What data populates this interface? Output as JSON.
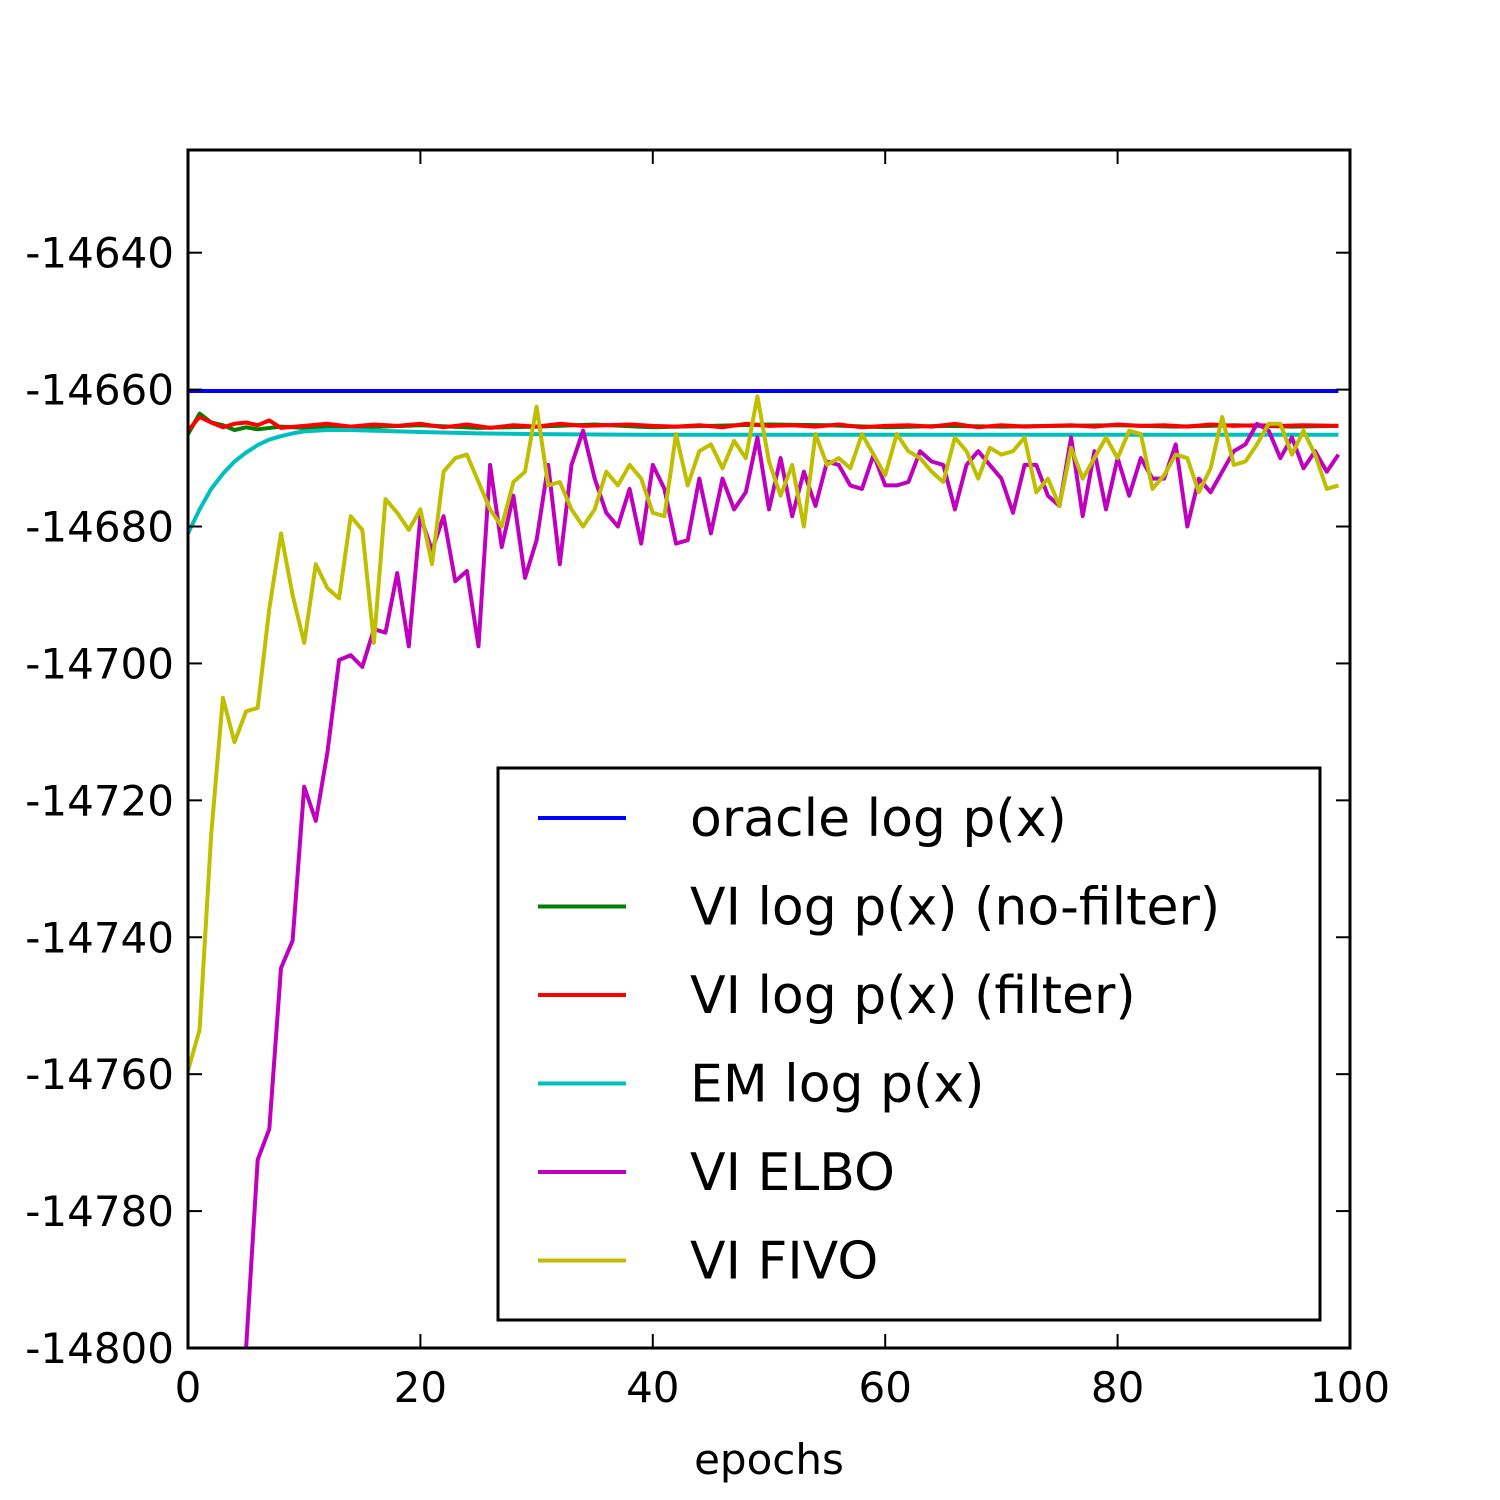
{
  "chart_data": {
    "type": "line",
    "title": "",
    "xlabel": "epochs",
    "ylabel": "",
    "xlim": [
      0,
      100
    ],
    "ylim": [
      -14800,
      -14625
    ],
    "x_ticks": [
      0,
      20,
      40,
      60,
      80,
      100
    ],
    "y_ticks": [
      -14800,
      -14780,
      -14760,
      -14740,
      -14720,
      -14700,
      -14680,
      -14660,
      -14640
    ],
    "x_tick_labels": [
      "0",
      "20",
      "40",
      "60",
      "80",
      "100"
    ],
    "y_tick_labels": [
      "-14800",
      "-14780",
      "-14760",
      "-14740",
      "-14720",
      "-14700",
      "-14680",
      "-14660",
      "-14640"
    ],
    "grid": false,
    "legend_position": "lower-right",
    "series": [
      {
        "name": "oracle log p(x)",
        "color": "#0000ff",
        "x": [
          0,
          99
        ],
        "y": [
          -14660.2,
          -14660.2
        ]
      },
      {
        "name": "VI log p(x) (no-filter)",
        "color": "#008000",
        "x": [
          0,
          1,
          2,
          3,
          4,
          5,
          6,
          8,
          10,
          15,
          20,
          25,
          30,
          35,
          40,
          45,
          50,
          55,
          60,
          65,
          70,
          75,
          80,
          85,
          90,
          95,
          99
        ],
        "y": [
          -14666.5,
          -14663.5,
          -14664.8,
          -14665.2,
          -14665.9,
          -14665.5,
          -14665.8,
          -14665.4,
          -14665.6,
          -14665.5,
          -14665.2,
          -14665.6,
          -14665.4,
          -14665.1,
          -14665.5,
          -14665.3,
          -14665.1,
          -14665.2,
          -14665.5,
          -14665.3,
          -14665.4,
          -14665.3,
          -14665.2,
          -14665.4,
          -14665.2,
          -14665.4,
          -14665.3
        ]
      },
      {
        "name": "VI log p(x) (filter)",
        "color": "#ff0000",
        "x": [
          0,
          1,
          2,
          3,
          4,
          5,
          6,
          7,
          8,
          10,
          12,
          14,
          16,
          18,
          20,
          22,
          24,
          26,
          28,
          30,
          32,
          34,
          36,
          38,
          40,
          42,
          44,
          46,
          48,
          50,
          52,
          54,
          56,
          58,
          60,
          62,
          64,
          66,
          68,
          70,
          72,
          74,
          76,
          78,
          80,
          82,
          84,
          86,
          88,
          90,
          92,
          94,
          96,
          99
        ],
        "y": [
          -14666.0,
          -14664.0,
          -14664.8,
          -14665.5,
          -14665.0,
          -14664.8,
          -14665.2,
          -14664.5,
          -14665.6,
          -14665.3,
          -14665.0,
          -14665.4,
          -14665.1,
          -14665.3,
          -14665.0,
          -14665.5,
          -14665.1,
          -14665.6,
          -14665.2,
          -14665.4,
          -14665.0,
          -14665.3,
          -14665.2,
          -14665.1,
          -14665.3,
          -14665.4,
          -14665.2,
          -14665.5,
          -14665.0,
          -14665.3,
          -14665.2,
          -14665.4,
          -14665.1,
          -14665.5,
          -14665.3,
          -14665.2,
          -14665.4,
          -14665.0,
          -14665.5,
          -14665.2,
          -14665.4,
          -14665.3,
          -14665.2,
          -14665.4,
          -14665.1,
          -14665.3,
          -14665.2,
          -14665.4,
          -14665.1,
          -14665.3,
          -14665.2,
          -14665.3,
          -14665.2,
          -14665.3
        ]
      },
      {
        "name": "EM log p(x)",
        "color": "#00bfbf",
        "x": [
          0,
          1,
          2,
          3,
          4,
          5,
          6,
          7,
          8,
          9,
          10,
          12,
          14,
          16,
          20,
          25,
          30,
          40,
          50,
          60,
          70,
          80,
          90,
          99
        ],
        "y": [
          -14681.0,
          -14677.5,
          -14674.5,
          -14672.3,
          -14670.5,
          -14669.2,
          -14668.1,
          -14667.3,
          -14666.8,
          -14666.4,
          -14666.1,
          -14665.9,
          -14665.9,
          -14666.0,
          -14666.2,
          -14666.4,
          -14666.5,
          -14666.6,
          -14666.6,
          -14666.6,
          -14666.6,
          -14666.6,
          -14666.6,
          -14666.6
        ]
      },
      {
        "name": "VI ELBO",
        "color": "#bf00bf",
        "x": [
          5,
          6,
          7,
          8,
          9,
          10,
          11,
          12,
          13,
          14,
          15,
          16,
          17,
          18,
          19,
          20,
          21,
          22,
          23,
          24,
          25,
          26,
          27,
          28,
          29,
          30,
          31,
          32,
          33,
          34,
          35,
          36,
          37,
          38,
          39,
          40,
          41,
          42,
          43,
          44,
          45,
          46,
          47,
          48,
          49,
          50,
          51,
          52,
          53,
          54,
          55,
          56,
          57,
          58,
          59,
          60,
          61,
          62,
          63,
          64,
          65,
          66,
          67,
          68,
          69,
          70,
          71,
          72,
          73,
          74,
          75,
          76,
          77,
          78,
          79,
          80,
          81,
          82,
          83,
          84,
          85,
          86,
          87,
          88,
          89,
          90,
          91,
          92,
          93,
          94,
          95,
          96,
          97,
          98,
          99
        ],
        "y": [
          -14800.0,
          -14772.5,
          -14768.0,
          -14744.5,
          -14740.5,
          -14718.0,
          -14723.0,
          -14713.0,
          -14699.5,
          -14698.8,
          -14700.5,
          -14695.0,
          -14695.5,
          -14686.8,
          -14697.5,
          -14678.5,
          -14683.5,
          -14678.5,
          -14688.0,
          -14686.5,
          -14697.5,
          -14671.0,
          -14683.0,
          -14675.5,
          -14687.5,
          -14682.0,
          -14671.0,
          -14685.5,
          -14671.0,
          -14666.0,
          -14673.0,
          -14678.0,
          -14680.0,
          -14674.5,
          -14682.5,
          -14671.0,
          -14674.5,
          -14682.5,
          -14682.0,
          -14673.0,
          -14681.0,
          -14673.0,
          -14677.5,
          -14675.0,
          -14667.0,
          -14677.5,
          -14670.0,
          -14678.5,
          -14672.0,
          -14677.0,
          -14670.5,
          -14671.0,
          -14674.0,
          -14674.5,
          -14669.5,
          -14674.0,
          -14674.0,
          -14673.5,
          -14669.0,
          -14670.5,
          -14671.0,
          -14677.5,
          -14671.0,
          -14669.0,
          -14671.0,
          -14673.0,
          -14678.0,
          -14671.0,
          -14671.0,
          -14675.5,
          -14677.0,
          -14667.0,
          -14678.5,
          -14669.0,
          -14677.5,
          -14670.0,
          -14675.5,
          -14670.0,
          -14673.0,
          -14673.0,
          -14668.0,
          -14680.0,
          -14673.0,
          -14675.0,
          -14672.0,
          -14669.0,
          -14668.0,
          -14665.0,
          -14666.0,
          -14670.0,
          -14667.0,
          -14671.5,
          -14669.0,
          -14672.0,
          -14669.5
        ]
      },
      {
        "name": "VI FIVO",
        "color": "#bfbf00",
        "x": [
          0,
          1,
          2,
          3,
          4,
          5,
          6,
          7,
          8,
          9,
          10,
          11,
          12,
          13,
          14,
          15,
          16,
          17,
          18,
          19,
          20,
          21,
          22,
          23,
          24,
          25,
          26,
          27,
          28,
          29,
          30,
          31,
          32,
          33,
          34,
          35,
          36,
          37,
          38,
          39,
          40,
          41,
          42,
          43,
          44,
          45,
          46,
          47,
          48,
          49,
          50,
          51,
          52,
          53,
          54,
          55,
          56,
          57,
          58,
          59,
          60,
          61,
          62,
          63,
          64,
          65,
          66,
          67,
          68,
          69,
          70,
          71,
          72,
          73,
          74,
          75,
          76,
          77,
          78,
          79,
          80,
          81,
          82,
          83,
          84,
          85,
          86,
          87,
          88,
          89,
          90,
          91,
          92,
          93,
          94,
          95,
          96,
          97,
          98,
          99
        ],
        "y": [
          -14759.5,
          -14753.5,
          -14725.0,
          -14705.0,
          -14711.5,
          -14707.0,
          -14706.5,
          -14692.0,
          -14681.0,
          -14690.0,
          -14697.0,
          -14685.5,
          -14689.0,
          -14690.5,
          -14678.5,
          -14680.5,
          -14697.0,
          -14676.0,
          -14678.0,
          -14680.5,
          -14677.5,
          -14685.5,
          -14672.0,
          -14670.0,
          -14669.5,
          -14673.5,
          -14677.5,
          -14680.0,
          -14673.5,
          -14672.0,
          -14662.5,
          -14674.0,
          -14673.5,
          -14677.5,
          -14680.0,
          -14677.5,
          -14672.0,
          -14674.0,
          -14671.0,
          -14673.0,
          -14678.0,
          -14678.5,
          -14666.5,
          -14674.0,
          -14669.0,
          -14668.0,
          -14671.5,
          -14667.5,
          -14670.0,
          -14661.0,
          -14670.5,
          -14675.5,
          -14671.0,
          -14680.0,
          -14666.5,
          -14671.0,
          -14670.0,
          -14671.5,
          -14666.5,
          -14669.5,
          -14672.5,
          -14666.5,
          -14669.0,
          -14670.0,
          -14672.0,
          -14673.5,
          -14667.0,
          -14669.0,
          -14673.0,
          -14668.5,
          -14669.5,
          -14669.0,
          -14667.0,
          -14675.0,
          -14673.0,
          -14677.0,
          -14668.5,
          -14673.0,
          -14670.0,
          -14667.0,
          -14670.0,
          -14666.0,
          -14666.5,
          -14674.5,
          -14672.5,
          -14669.5,
          -14670.0,
          -14675.0,
          -14671.5,
          -14664.0,
          -14671.0,
          -14670.5,
          -14668.0,
          -14665.0,
          -14665.0,
          -14669.5,
          -14666.0,
          -14669.5,
          -14674.5,
          -14674.0
        ]
      }
    ]
  }
}
